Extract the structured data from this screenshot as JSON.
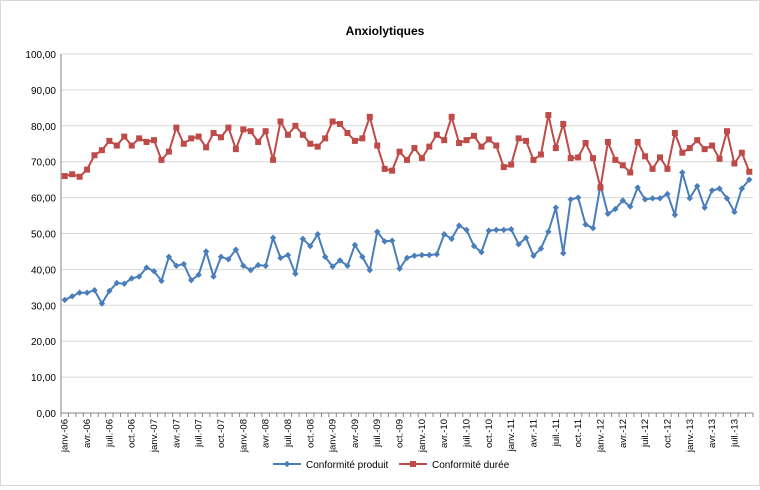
{
  "chart_data": {
    "type": "line",
    "title": "Anxiolytiques",
    "xlabel": "",
    "ylabel": "",
    "ylim": [
      0,
      100
    ],
    "yticks": [
      "0,00",
      "10,00",
      "20,00",
      "30,00",
      "40,00",
      "50,00",
      "60,00",
      "70,00",
      "80,00",
      "90,00",
      "100,00"
    ],
    "grid": true,
    "legend_position": "bottom",
    "x": [
      "janv.-06",
      "févr.-06",
      "mars-06",
      "avr.-06",
      "mai-06",
      "juin-06",
      "juil.-06",
      "août-06",
      "sept.-06",
      "oct.-06",
      "nov.-06",
      "déc.-06",
      "janv.-07",
      "févr.-07",
      "mars-07",
      "avr.-07",
      "mai-07",
      "juin-07",
      "juil.-07",
      "août-07",
      "sept.-07",
      "oct.-07",
      "nov.-07",
      "déc.-07",
      "janv.-08",
      "févr.-08",
      "mars-08",
      "avr.-08",
      "mai-08",
      "juin-08",
      "juil.-08",
      "août-08",
      "sept.-08",
      "oct.-08",
      "nov.-08",
      "déc.-08",
      "janv.-09",
      "févr.-09",
      "mars-09",
      "avr.-09",
      "mai-09",
      "juin-09",
      "juil.-09",
      "août-09",
      "sept.-09",
      "oct.-09",
      "nov.-09",
      "déc.-09",
      "janv.-10",
      "févr.-10",
      "mars-10",
      "avr.-10",
      "mai-10",
      "juin-10",
      "juil.-10",
      "août-10",
      "sept.-10",
      "oct.-10",
      "nov.-10",
      "déc.-10",
      "janv.-11",
      "févr.-11",
      "mars-11",
      "avr.-11",
      "mai-11",
      "juin-11",
      "juil.-11",
      "août-11",
      "sept.-11",
      "oct.-11",
      "nov.-11",
      "déc.-11",
      "janv.-12",
      "févr.-12",
      "mars-12",
      "avr.-12",
      "mai-12",
      "juin-12",
      "juil.-12",
      "août-12",
      "sept.-12",
      "oct.-12",
      "nov.-12",
      "déc.-12",
      "janv.-13",
      "févr.-13",
      "mars-13",
      "avr.-13",
      "mai-13",
      "juin-13",
      "juil.-13",
      "août-13",
      "sept.-13"
    ],
    "x_tick_labels": [
      "janv.-06",
      "avr.-06",
      "juil.-06",
      "oct.-06",
      "janv.-07",
      "avr.-07",
      "juil.-07",
      "oct.-07",
      "janv.-08",
      "avr.-08",
      "juil.-08",
      "oct.-08",
      "janv.-09",
      "avr.-09",
      "juil.-09",
      "oct.-09",
      "janv.-10",
      "avr.-10",
      "juil.-10",
      "oct.-10",
      "janv.-11",
      "avr.-11",
      "juil.-11",
      "oct.-11",
      "janv.-12",
      "avr.-12",
      "juil.-12",
      "oct.-12",
      "janv.-13",
      "avr.-13",
      "juil.-13"
    ],
    "series": [
      {
        "name": "Conformité produit",
        "color": "#4a7ebb",
        "marker": "diamond",
        "values": [
          31.5,
          32.5,
          33.5,
          33.5,
          34.2,
          30.5,
          34.0,
          36.2,
          36.0,
          37.5,
          38.0,
          40.5,
          39.5,
          36.8,
          43.5,
          41.0,
          41.5,
          37.0,
          38.5,
          45.0,
          38.0,
          43.5,
          42.8,
          45.5,
          41.0,
          39.8,
          41.2,
          41.0,
          48.8,
          43.2,
          44.0,
          38.8,
          48.5,
          46.5,
          49.8,
          43.5,
          40.8,
          42.5,
          41.0,
          46.8,
          43.5,
          39.8,
          50.5,
          47.8,
          48.0,
          40.2,
          43.2,
          43.8,
          44.0,
          44.0,
          44.2,
          49.8,
          48.5,
          52.2,
          51.0,
          46.5,
          44.8,
          50.8,
          51.0,
          51.0,
          51.2,
          47.0,
          48.8,
          43.8,
          45.8,
          50.5,
          57.2,
          44.5,
          59.5,
          60.0,
          52.5,
          51.5,
          63.5,
          55.5,
          56.8,
          59.2,
          57.5,
          62.8,
          59.5,
          59.8,
          59.8,
          61.0,
          55.2,
          67.0,
          59.8,
          63.2,
          57.2,
          62.0,
          62.5,
          59.8,
          56.0,
          62.5,
          65.0
        ]
      },
      {
        "name": "Conformité durée",
        "color": "#be4b48",
        "marker": "square",
        "values": [
          66.0,
          66.5,
          65.8,
          67.8,
          71.8,
          73.2,
          75.8,
          74.5,
          77.0,
          74.5,
          76.5,
          75.5,
          76.0,
          70.5,
          72.8,
          79.5,
          75.0,
          76.5,
          77.0,
          74.0,
          78.0,
          76.8,
          79.5,
          73.5,
          79.0,
          78.5,
          75.5,
          78.5,
          70.5,
          81.2,
          77.5,
          80.0,
          77.5,
          75.0,
          74.2,
          76.5,
          81.2,
          80.5,
          78.0,
          75.8,
          76.5,
          82.5,
          74.5,
          68.0,
          67.5,
          72.8,
          70.5,
          73.8,
          71.0,
          74.2,
          77.5,
          76.0,
          82.5,
          75.2,
          76.0,
          77.2,
          74.2,
          76.2,
          74.5,
          68.5,
          69.2,
          76.5,
          75.8,
          70.5,
          72.0,
          83.0,
          73.8,
          80.5,
          71.0,
          71.2,
          75.2,
          71.0,
          62.8,
          75.5,
          70.5,
          69.0,
          67.0,
          75.5,
          71.5,
          68.0,
          71.2,
          68.0,
          78.0,
          72.5,
          73.8,
          76.0,
          73.5,
          74.5,
          70.8,
          78.5,
          69.5,
          72.5,
          67.2
        ]
      }
    ]
  }
}
